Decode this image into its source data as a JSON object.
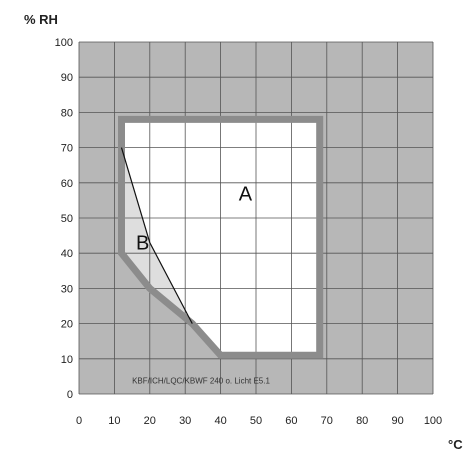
{
  "chart_data": {
    "type": "area",
    "ylabel": "% RH",
    "xlabel": "°C",
    "xlim": [
      0,
      100
    ],
    "ylim": [
      0,
      100
    ],
    "x_ticks": [
      0,
      10,
      20,
      30,
      40,
      50,
      60,
      70,
      80,
      90,
      100
    ],
    "y_ticks": [
      0,
      10,
      20,
      30,
      40,
      50,
      60,
      70,
      80,
      90,
      100
    ],
    "grid": true,
    "regions": [
      {
        "name": "A",
        "boundary": [
          [
            12,
            78
          ],
          [
            68,
            78
          ],
          [
            68,
            11
          ],
          [
            40,
            11
          ],
          [
            32,
            20
          ],
          [
            20,
            30
          ],
          [
            12,
            40
          ]
        ]
      },
      {
        "name": "B",
        "boundary": [
          [
            12,
            70
          ],
          [
            20,
            43
          ],
          [
            32,
            20
          ],
          [
            20,
            30
          ],
          [
            12,
            40
          ]
        ]
      }
    ],
    "region_labels": [
      {
        "text": "A",
        "x": 47,
        "y": 55
      },
      {
        "text": "B",
        "x": 18,
        "y": 41
      }
    ],
    "annotation": {
      "text": "KBF/ICH/LQC/KBWF 240 o. Licht E5.1",
      "x": 15,
      "y": 3
    },
    "colors": {
      "outside_fill": "#b7b7b7",
      "inside_fill": "#ffffff",
      "region_b_fill": "#dedede",
      "boundary": "#8c8c8c",
      "grid": "#555555",
      "line": "#111111"
    }
  }
}
